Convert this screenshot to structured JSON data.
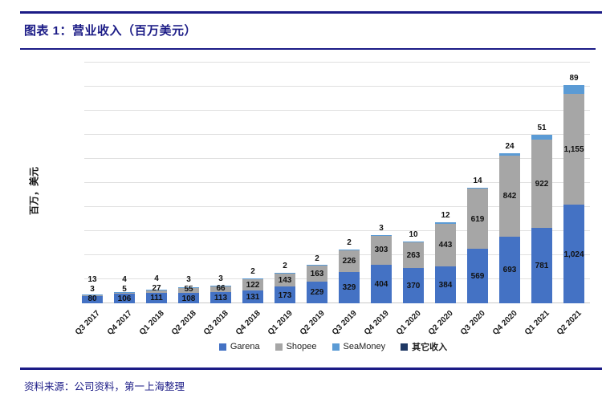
{
  "header": {
    "title": "图表 1：营业收入（百万美元）"
  },
  "footer": {
    "source": "资料来源：公司资料，第一上海整理"
  },
  "colors": {
    "accent_navy": "#1b1b86",
    "garena_blue": "#4472c4",
    "shopee_gray": "#a6a6a6",
    "seamoney_blue": "#5b9bd5",
    "other_navy": "#1f3864",
    "gridline_gray": "#e0e0e0"
  },
  "chart_data": {
    "type": "bar",
    "stacked": true,
    "title": "营业收入（百万美元）",
    "xlabel": "",
    "ylabel": "百万，美元",
    "ylim": [
      0,
      2500
    ],
    "gridline_interval": 250,
    "grid": true,
    "y_tick_labels_visible": false,
    "legend_position": "bottom",
    "categories": [
      "Q3 2017",
      "Q4 2017",
      "Q1 2018",
      "Q2 2018",
      "Q3 2018",
      "Q4 2018",
      "Q1 2019",
      "Q2 2019",
      "Q3 2019",
      "Q4 2019",
      "Q1 2020",
      "Q2 2020",
      "Q3 2020",
      "Q4 2020",
      "Q1 2021",
      "Q2 2021"
    ],
    "series": [
      {
        "name": "Garena",
        "color": "#4472c4",
        "bold_legend": false,
        "values": [
          80,
          106,
          111,
          108,
          113,
          131,
          173,
          229,
          329,
          404,
          370,
          384,
          569,
          693,
          781,
          1024
        ]
      },
      {
        "name": "Shopee",
        "color": "#a6a6a6",
        "bold_legend": false,
        "values": [
          3,
          5,
          27,
          55,
          66,
          122,
          143,
          163,
          226,
          303,
          263,
          443,
          619,
          842,
          922,
          1155
        ]
      },
      {
        "name": "SeaMoney",
        "color": "#5b9bd5",
        "bold_legend": false,
        "values": [
          13,
          4,
          4,
          3,
          3,
          2,
          2,
          2,
          2,
          3,
          10,
          12,
          14,
          24,
          51,
          89
        ]
      },
      {
        "name": "其它收入",
        "color": "#1f3864",
        "bold_legend": true,
        "values": [
          0,
          0,
          0,
          0,
          0,
          0,
          0,
          0,
          0,
          0,
          0,
          0,
          0,
          0,
          0,
          0
        ]
      }
    ]
  }
}
